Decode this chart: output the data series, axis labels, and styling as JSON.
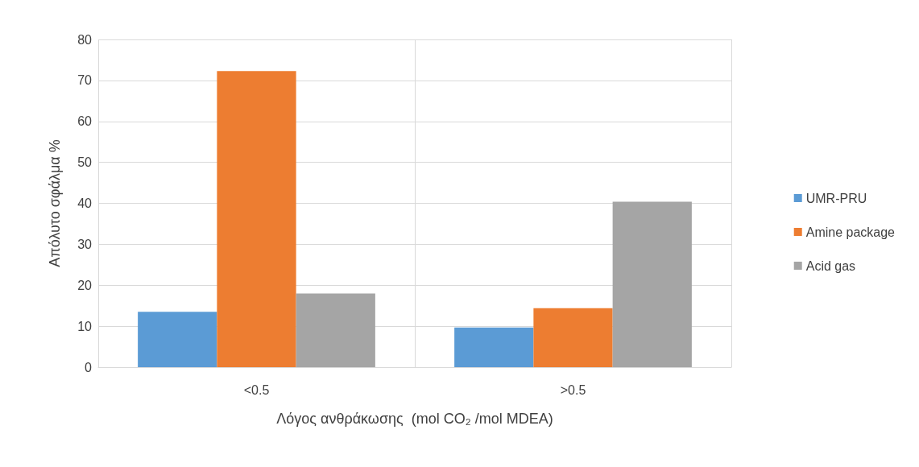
{
  "chart_data": {
    "type": "bar",
    "categories": [
      "<0.5",
      ">0.5"
    ],
    "series": [
      {
        "name": "UMR-PRU",
        "color": "#5b9bd5",
        "values": [
          13.5,
          9.7
        ]
      },
      {
        "name": "Amine package",
        "color": "#ed7d31",
        "values": [
          72.3,
          14.4
        ]
      },
      {
        "name": "Acid gas",
        "color": "#a5a5a5",
        "values": [
          18.0,
          40.4
        ]
      }
    ],
    "xlabel": "Λόγος ανθράκωσης  (mol CO₂ /mol MDEA)",
    "ylabel": "Απόλυτο σφάλμα %",
    "ylim": [
      0,
      80
    ],
    "yticks": [
      0,
      10,
      20,
      30,
      40,
      50,
      60,
      70,
      80
    ],
    "grid": true,
    "legend": "right"
  }
}
